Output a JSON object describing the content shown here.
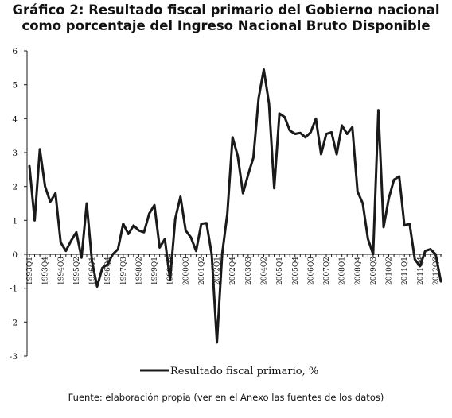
{
  "header": {
    "title_line1": "Gráfico 2: Resultado fiscal primario del Gobierno nacional",
    "title_line2": "como porcentaje del Ingreso Nacional Bruto Disponible"
  },
  "footer": {
    "source": "Fuente: elaboración propia (ver en el Anexo las fuentes de los datos)"
  },
  "colors": {
    "line": "#1a1a1a",
    "axis": "#1a1a1a"
  },
  "chart_data": {
    "type": "line",
    "title": "Gráfico 2: Resultado fiscal primario del Gobierno nacional como porcentaje del Ingreso Nacional Bruto Disponible",
    "xlabel": "",
    "ylabel": "",
    "ylim": [
      -3,
      6
    ],
    "yticks": [
      6,
      5,
      4,
      3,
      2,
      1,
      0,
      -1,
      -2,
      -3
    ],
    "grid": false,
    "legend_position": "bottom",
    "x_tick_labels": [
      "1993Q1",
      "1993Q4",
      "1994Q3",
      "1995Q2",
      "1996Q1",
      "1996Q4",
      "1997Q3",
      "1998Q2",
      "1999Q1",
      "1999Q4",
      "2000Q3",
      "2001Q2",
      "2002Q1",
      "2002Q4",
      "2003Q3",
      "2004Q2",
      "2005Q1",
      "2005Q4",
      "2006Q3",
      "2007Q2",
      "2008Q1",
      "2008Q4",
      "2009Q3",
      "2010Q2",
      "2011Q1",
      "2011Q4",
      "2012Q3"
    ],
    "series": [
      {
        "name": "Resultado fiscal primario, %",
        "x": [
          "1993Q1",
          "1993Q2",
          "1993Q3",
          "1993Q4",
          "1994Q1",
          "1994Q2",
          "1994Q3",
          "1994Q4",
          "1995Q1",
          "1995Q2",
          "1995Q3",
          "1995Q4",
          "1996Q1",
          "1996Q2",
          "1996Q3",
          "1996Q4",
          "1997Q1",
          "1997Q2",
          "1997Q3",
          "1997Q4",
          "1998Q1",
          "1998Q2",
          "1998Q3",
          "1998Q4",
          "1999Q1",
          "1999Q2",
          "1999Q3",
          "1999Q4",
          "2000Q1",
          "2000Q2",
          "2000Q3",
          "2000Q4",
          "2001Q1",
          "2001Q2",
          "2001Q3",
          "2001Q4",
          "2002Q1",
          "2002Q2",
          "2002Q3",
          "2002Q4",
          "2003Q1",
          "2003Q2",
          "2003Q3",
          "2003Q4",
          "2004Q1",
          "2004Q2",
          "2004Q3",
          "2004Q4",
          "2005Q1",
          "2005Q2",
          "2005Q3",
          "2005Q4",
          "2006Q1",
          "2006Q2",
          "2006Q3",
          "2006Q4",
          "2007Q1",
          "2007Q2",
          "2007Q3",
          "2007Q4",
          "2008Q1",
          "2008Q2",
          "2008Q3",
          "2008Q4",
          "2009Q1",
          "2009Q2",
          "2009Q3",
          "2009Q4",
          "2010Q1",
          "2010Q2",
          "2010Q3",
          "2010Q4",
          "2011Q1",
          "2011Q2",
          "2011Q3",
          "2011Q4",
          "2012Q1",
          "2012Q2",
          "2012Q3",
          "2012Q4"
        ],
        "values": [
          2.6,
          1.0,
          3.1,
          2.0,
          1.55,
          1.8,
          0.35,
          0.1,
          0.4,
          0.65,
          -0.1,
          1.5,
          -0.2,
          -0.95,
          -0.4,
          -0.3,
          0.0,
          0.15,
          0.9,
          0.6,
          0.85,
          0.7,
          0.65,
          1.2,
          1.45,
          0.2,
          0.45,
          -0.75,
          1.05,
          1.7,
          0.7,
          0.5,
          0.1,
          0.9,
          0.92,
          0.0,
          -2.6,
          0.0,
          1.2,
          3.45,
          2.9,
          1.8,
          2.35,
          2.85,
          4.6,
          5.45,
          4.45,
          1.95,
          4.15,
          4.05,
          3.65,
          3.55,
          3.58,
          3.45,
          3.6,
          4.0,
          2.95,
          3.55,
          3.6,
          2.95,
          3.8,
          3.55,
          3.75,
          1.85,
          1.5,
          0.45,
          0.0,
          4.25,
          0.8,
          1.65,
          2.2,
          2.3,
          0.85,
          0.9,
          -0.15,
          -0.35,
          0.1,
          0.15,
          0.0,
          -0.8
        ]
      }
    ]
  }
}
